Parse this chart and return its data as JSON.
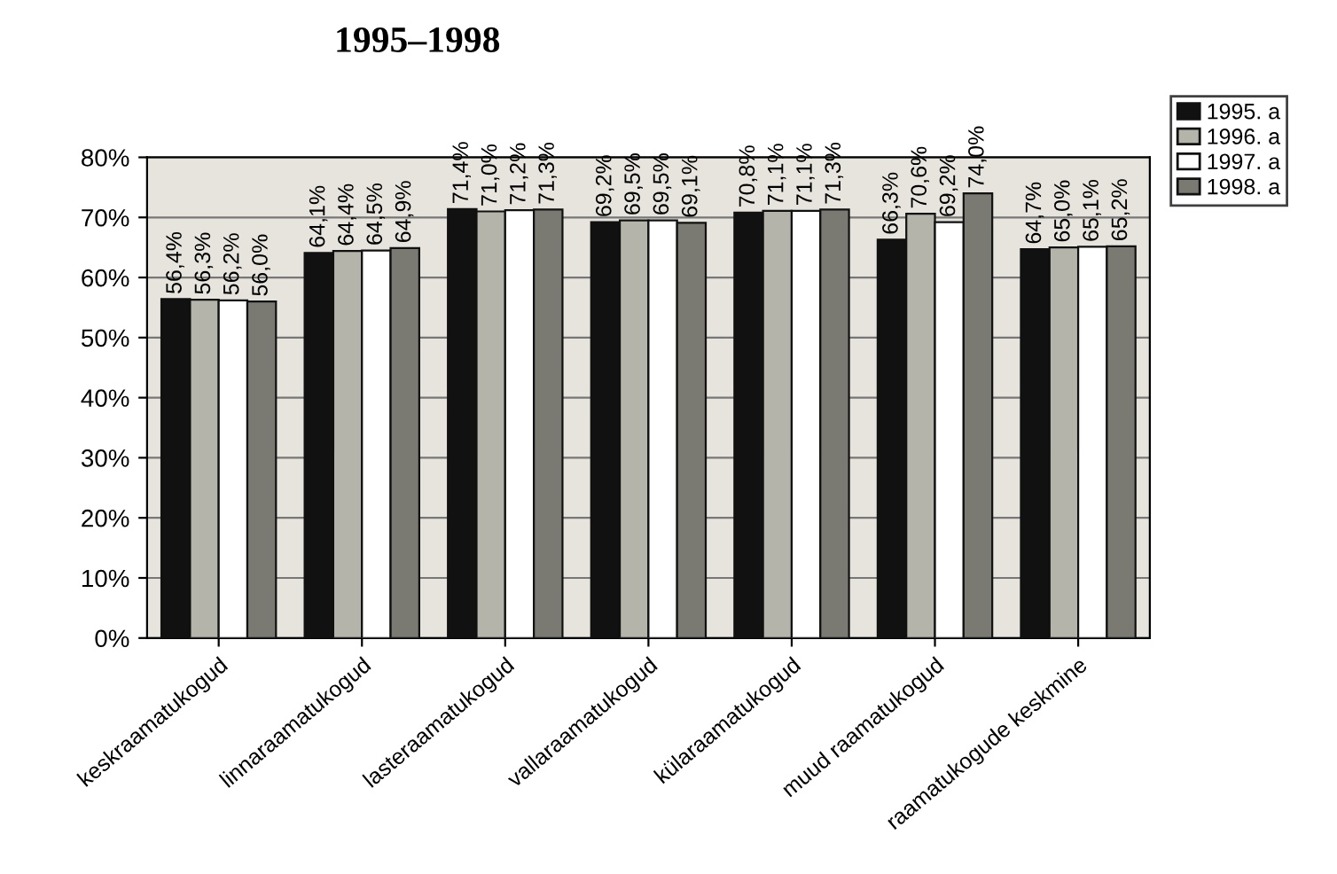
{
  "chart_data": {
    "type": "bar",
    "title": "1995–1998",
    "categories": [
      "keskraamatukogud",
      "linnaraamatukogud",
      "lasteraamatukogud",
      "vallaraamatukogud",
      "külaraamatukogud",
      "muud raamatukogud",
      "raamatukogude keskmine"
    ],
    "series": [
      {
        "name": "1995. a",
        "color": "#111111",
        "values": [
          56.4,
          64.1,
          71.4,
          69.2,
          70.8,
          66.3,
          64.7
        ],
        "value_labels": [
          "56,4%",
          "64,1%",
          "71,4%",
          "69,2%",
          "70,8%",
          "66,3%",
          "64,7%"
        ]
      },
      {
        "name": "1996. a",
        "color": "#b4b4aa",
        "values": [
          56.3,
          64.4,
          71.0,
          69.5,
          71.1,
          70.6,
          65.0
        ],
        "value_labels": [
          "56,3%",
          "64,4%",
          "71,0%",
          "69,5%",
          "71,1%",
          "70,6%",
          "65,0%"
        ]
      },
      {
        "name": "1997. a",
        "color": "#ffffff",
        "values": [
          56.2,
          64.5,
          71.2,
          69.5,
          71.1,
          69.2,
          65.1
        ],
        "value_labels": [
          "56,2%",
          "64,5%",
          "71,2%",
          "69,5%",
          "71,1%",
          "69,2%",
          "65,1%"
        ]
      },
      {
        "name": "1998. a",
        "color": "#7a7a72",
        "values": [
          56.0,
          64.9,
          71.3,
          69.1,
          71.3,
          74.0,
          65.2
        ],
        "value_labels": [
          "56,0%",
          "64,9%",
          "71,3%",
          "69,1%",
          "71,3%",
          "74,0%",
          "65,2%"
        ]
      }
    ],
    "ylim": [
      0,
      80
    ],
    "yticks": [
      {
        "value": 0,
        "label": "0%"
      },
      {
        "value": 10,
        "label": "10%"
      },
      {
        "value": 20,
        "label": "20%"
      },
      {
        "value": 30,
        "label": "30%"
      },
      {
        "value": 40,
        "label": "40%"
      },
      {
        "value": 50,
        "label": "50%"
      },
      {
        "value": 60,
        "label": "60%"
      },
      {
        "value": 70,
        "label": "70%"
      },
      {
        "value": 80,
        "label": "80%"
      }
    ],
    "grid": "y",
    "legend": "top right"
  }
}
